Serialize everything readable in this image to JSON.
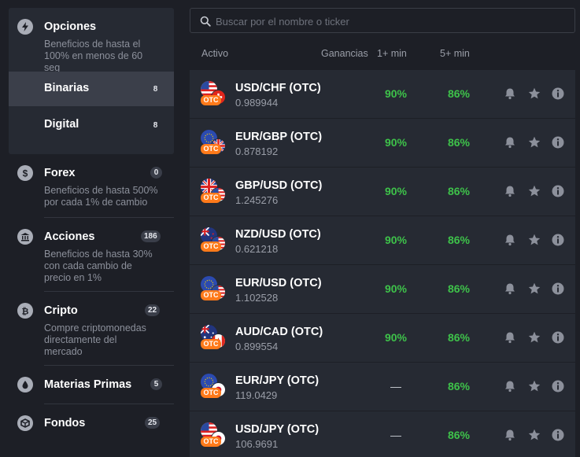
{
  "sidebar": {
    "opciones": {
      "title": "Opciones",
      "desc_lines": [
        "Beneficios de hasta el",
        "100% en menos de 60",
        "seg"
      ],
      "items": [
        {
          "label": "Binarias",
          "count": "8"
        },
        {
          "label": "Digital",
          "count": "8"
        }
      ]
    },
    "forex": {
      "title": "Forex",
      "count": "0",
      "desc_lines": [
        "Beneficios de hasta 500%",
        "por cada 1% de cambio"
      ]
    },
    "acciones": {
      "title": "Acciones",
      "count": "186",
      "desc_lines": [
        "Beneficios de hasta 30%",
        "con cada cambio de",
        "precio en 1%"
      ]
    },
    "cripto": {
      "title": "Cripto",
      "count": "22",
      "desc_lines": [
        "Compre criptomonedas",
        "directamente del",
        "mercado"
      ]
    },
    "materias": {
      "title": "Materias Primas",
      "count": "5"
    },
    "fondos": {
      "title": "Fondos",
      "count": "25"
    }
  },
  "search": {
    "placeholder": "Buscar por el nombre o ticker"
  },
  "table": {
    "headers": {
      "asset": "Activo",
      "gains": "Ganancias",
      "min1": "1+ min",
      "min5": "5+ min"
    },
    "otc_label": "OTC",
    "rows": [
      {
        "name": "USD/CHF (OTC)",
        "price": "0.989944",
        "p1": "90%",
        "p5": "86%",
        "flags": [
          "us",
          "ch"
        ]
      },
      {
        "name": "EUR/GBP (OTC)",
        "price": "0.878192",
        "p1": "90%",
        "p5": "86%",
        "flags": [
          "eu",
          "gb"
        ]
      },
      {
        "name": "GBP/USD (OTC)",
        "price": "1.245276",
        "p1": "90%",
        "p5": "86%",
        "flags": [
          "gb",
          "us"
        ]
      },
      {
        "name": "NZD/USD (OTC)",
        "price": "0.621218",
        "p1": "90%",
        "p5": "86%",
        "flags": [
          "nz",
          "us"
        ]
      },
      {
        "name": "EUR/USD (OTC)",
        "price": "1.102528",
        "p1": "90%",
        "p5": "86%",
        "flags": [
          "eu",
          "us"
        ]
      },
      {
        "name": "AUD/CAD (OTC)",
        "price": "0.899554",
        "p1": "90%",
        "p5": "86%",
        "flags": [
          "au",
          "ca"
        ]
      },
      {
        "name": "EUR/JPY (OTC)",
        "price": "119.0429",
        "p1": "—",
        "p5": "86%",
        "flags": [
          "eu",
          "jp"
        ]
      },
      {
        "name": "USD/JPY (OTC)",
        "price": "106.9691",
        "p1": "—",
        "p5": "86%",
        "flags": [
          "us",
          "jp"
        ]
      }
    ]
  },
  "icons": {
    "opciones": "lightning-icon",
    "forex": "dollar-icon",
    "acciones": "bank-icon",
    "cripto": "bitcoin-icon",
    "materias": "drop-icon",
    "fondos": "box-icon",
    "row_actions": [
      "bell-icon",
      "star-icon",
      "info-icon"
    ]
  },
  "colors": {
    "accent_green": "#3ec24a",
    "otc_orange": "#ff7a1a",
    "background": "#1d1f26",
    "panel": "#262a33"
  }
}
